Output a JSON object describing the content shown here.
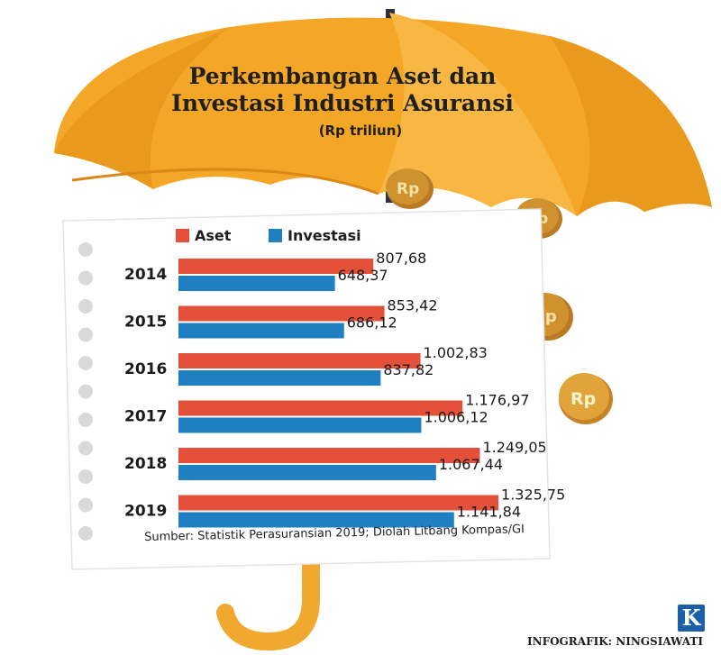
{
  "header": {
    "title_line1": "Perkembangan Aset dan",
    "title_line2": "Investasi Industri Asuransi",
    "unit": "(Rp triliun)"
  },
  "coin_label": "Rp",
  "colors": {
    "aset": "#e4503a",
    "investasi": "#1f7fc1",
    "umbrella": "#f4a626",
    "umbrella_dark": "#d98716",
    "coin": "#c9892a"
  },
  "chart_data": {
    "type": "bar",
    "orientation": "horizontal",
    "categories": [
      "2014",
      "2015",
      "2016",
      "2017",
      "2018",
      "2019"
    ],
    "series": [
      {
        "name": "Aset",
        "values": [
          807.68,
          853.42,
          1002.83,
          1176.97,
          1249.05,
          1325.75
        ],
        "labels": [
          "807,68",
          "853,42",
          "1.002,83",
          "1.176,97",
          "1.249,05",
          "1.325,75"
        ]
      },
      {
        "name": "Investasi",
        "values": [
          648.37,
          686.12,
          837.82,
          1006.12,
          1067.44,
          1141.84
        ],
        "labels": [
          "648,37",
          "686,12",
          "837,82",
          "1.006,12",
          "1.067,44",
          "1.141,84"
        ]
      }
    ],
    "legend_position": "top-left",
    "grid": false
  },
  "footer": {
    "source": "Sumber: Statistik Perasuransian 2019; Diolah Litbang Kompas/GI",
    "credit": "INFOGRAFIK: NINGSIAWATI",
    "logo_letter": "K"
  }
}
